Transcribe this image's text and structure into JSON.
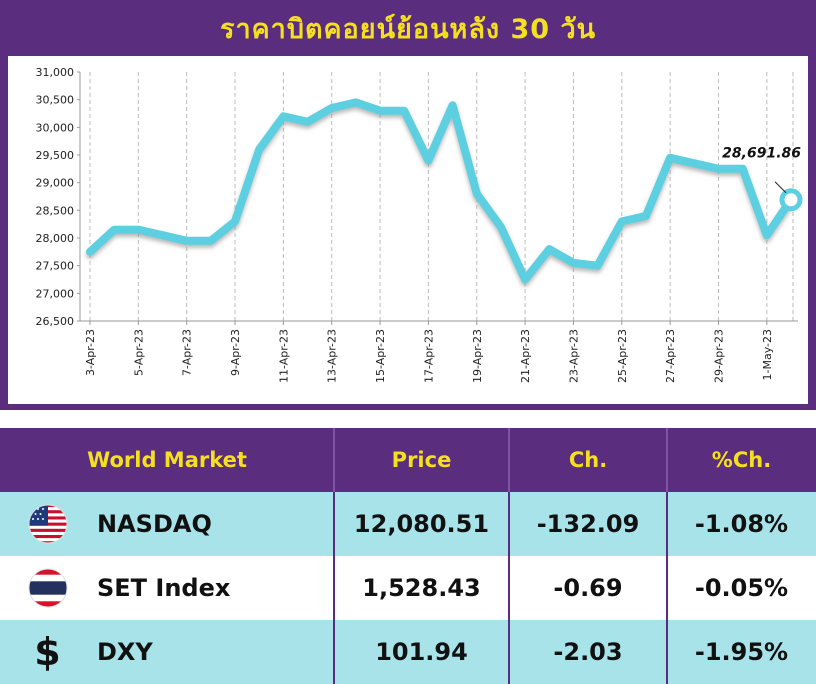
{
  "chart_data": {
    "type": "line",
    "title": "ราคาบิตคอยน์ย้อนหลัง 30 วัน",
    "x": [
      "3-Apr-23",
      "4-Apr-23",
      "5-Apr-23",
      "6-Apr-23",
      "7-Apr-23",
      "8-Apr-23",
      "9-Apr-23",
      "10-Apr-23",
      "11-Apr-23",
      "12-Apr-23",
      "13-Apr-23",
      "14-Apr-23",
      "15-Apr-23",
      "16-Apr-23",
      "17-Apr-23",
      "18-Apr-23",
      "19-Apr-23",
      "20-Apr-23",
      "21-Apr-23",
      "22-Apr-23",
      "23-Apr-23",
      "24-Apr-23",
      "25-Apr-23",
      "26-Apr-23",
      "27-Apr-23",
      "28-Apr-23",
      "29-Apr-23",
      "30-Apr-23",
      "1-May-23",
      "2-May-23"
    ],
    "tick_labels": [
      "3-Apr-23",
      "5-Apr-23",
      "7-Apr-23",
      "9-Apr-23",
      "11-Apr-23",
      "13-Apr-23",
      "15-Apr-23",
      "17-Apr-23",
      "19-Apr-23",
      "21-Apr-23",
      "23-Apr-23",
      "25-Apr-23",
      "27-Apr-23",
      "29-Apr-23",
      "1-May-23"
    ],
    "values": [
      27750,
      28150,
      28150,
      28050,
      27950,
      27950,
      28300,
      29600,
      30200,
      30100,
      30350,
      30450,
      30300,
      30300,
      29400,
      30400,
      28800,
      28200,
      27250,
      27800,
      27550,
      27500,
      28300,
      28400,
      29450,
      29350,
      29250,
      29250,
      28050,
      28691.86
    ],
    "ylim": [
      26500,
      31000
    ],
    "yticks": [
      "26,500",
      "27,000",
      "27,500",
      "28,000",
      "28,500",
      "29,000",
      "29,500",
      "30,000",
      "30,500",
      "31,000"
    ],
    "grid": "vertical dashed",
    "line_color": "#5ccfe0",
    "annotation": "28,691.86"
  },
  "table": {
    "headers": [
      "World Market",
      "Price",
      "Ch.",
      "%Ch."
    ],
    "rows": [
      {
        "icon": "us-flag-icon",
        "name": "NASDAQ",
        "price": "12,080.51",
        "ch": "-132.09",
        "pch": "-1.08%"
      },
      {
        "icon": "thai-flag-icon",
        "name": "SET Index",
        "price": "1,528.43",
        "ch": "-0.69",
        "pch": "-0.05%"
      },
      {
        "icon": "dollar-icon",
        "name": "DXY",
        "price": "101.94",
        "ch": "-2.03",
        "pch": "-1.95%"
      }
    ]
  },
  "colors": {
    "purple": "#5a2d7e",
    "yellow": "#f4e01e",
    "cyan_row": "#a9e3ea"
  }
}
